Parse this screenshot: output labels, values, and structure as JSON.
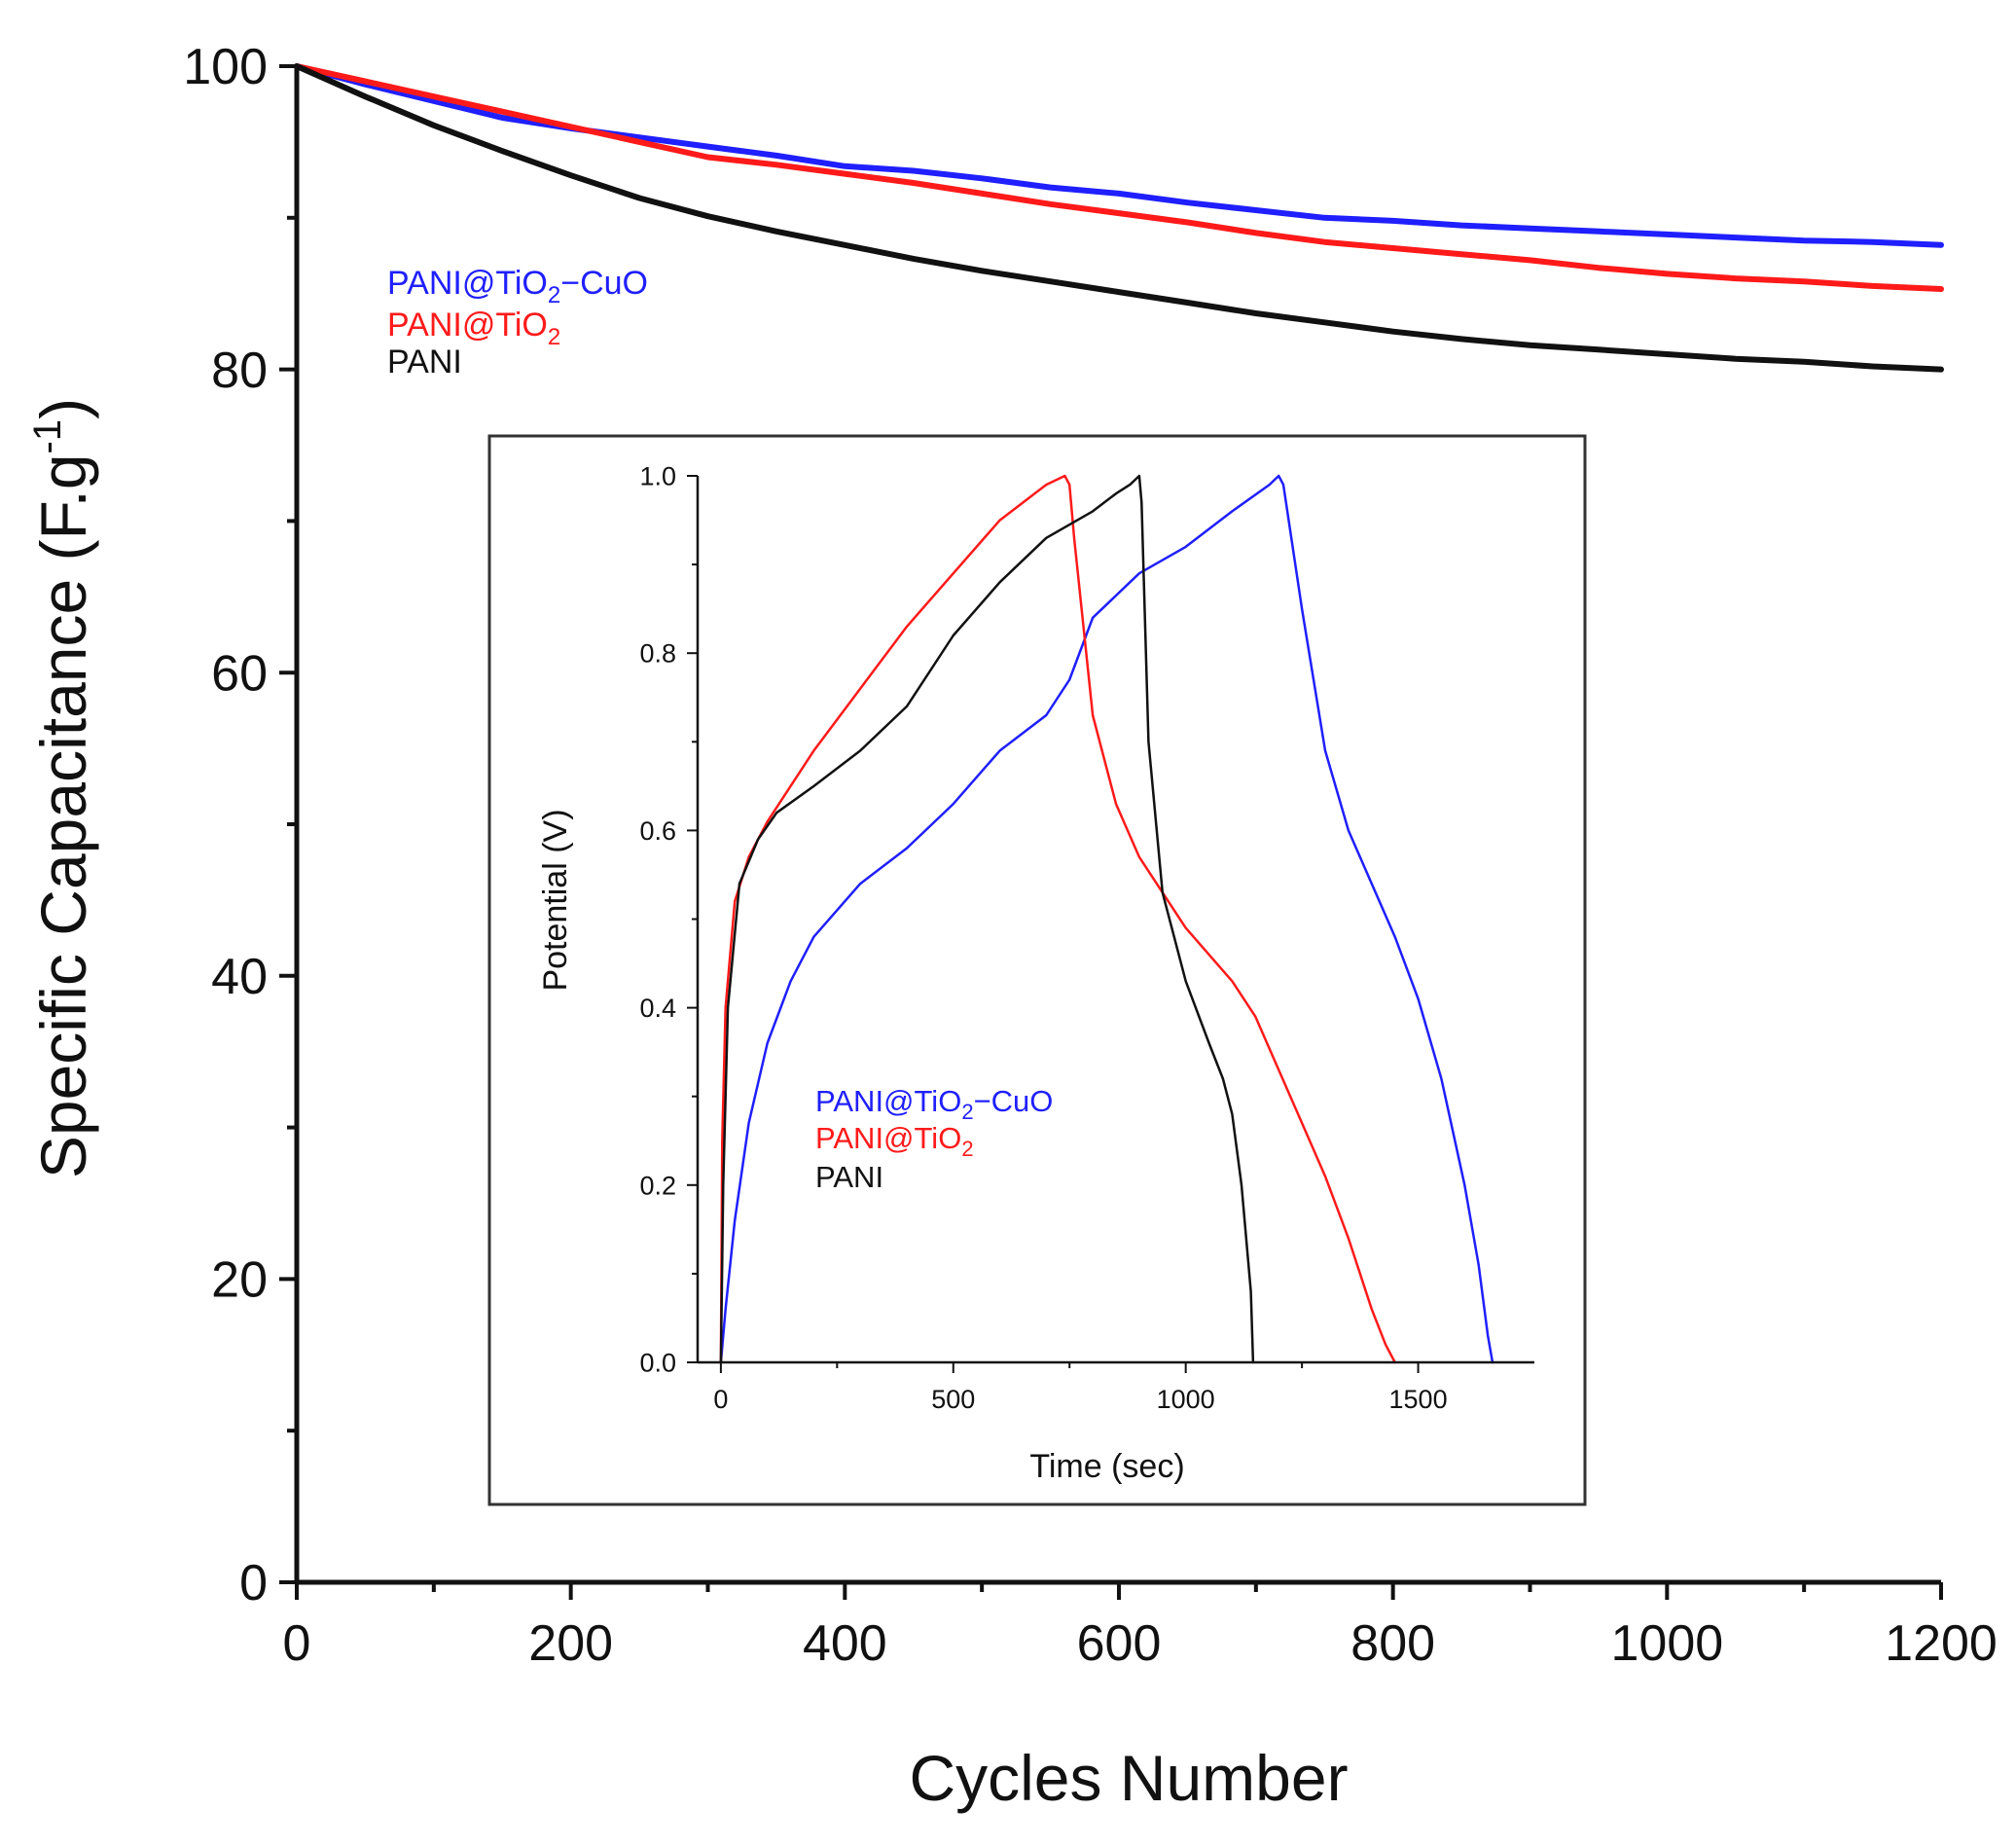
{
  "chart_data": [
    {
      "type": "line",
      "role": "main",
      "xlabel": "Cycles Number",
      "ylabel_main": "Specific Capacitance (F.g",
      "ylabel_sup": "-1",
      "ylabel_close": ")",
      "xlim": [
        0,
        1200
      ],
      "ylim": [
        0,
        100
      ],
      "xticks": [
        0,
        200,
        400,
        600,
        800,
        1000,
        1200
      ],
      "xtick_labels": [
        "0",
        "200",
        "400",
        "600",
        "800",
        "1000",
        "1200"
      ],
      "yticks": [
        0,
        20,
        40,
        60,
        80,
        100
      ],
      "ytick_labels": [
        "0",
        "20",
        "40",
        "60",
        "80",
        "100"
      ],
      "legend_position": "upper-left",
      "series": [
        {
          "name": "PANI@TiO2-CuO",
          "label_main": "PANI@TiO",
          "label_sub": "2",
          "label_tail": "−CuO",
          "color": "#1f1fff",
          "x": [
            0,
            50,
            100,
            150,
            200,
            250,
            300,
            350,
            400,
            450,
            500,
            550,
            600,
            650,
            700,
            750,
            800,
            850,
            900,
            950,
            1000,
            1050,
            1100,
            1150,
            1200
          ],
          "y": [
            100,
            98.8,
            97.7,
            96.6,
            95.9,
            95.3,
            94.7,
            94.1,
            93.4,
            93.1,
            92.6,
            92.0,
            91.6,
            91.0,
            90.5,
            90.0,
            89.8,
            89.5,
            89.3,
            89.1,
            88.9,
            88.7,
            88.5,
            88.4,
            88.2
          ]
        },
        {
          "name": "PANI@TiO2",
          "label_main": "PANI@TiO",
          "label_sub": "2",
          "label_tail": "",
          "color": "#ff1a1a",
          "x": [
            0,
            50,
            100,
            150,
            200,
            250,
            300,
            350,
            400,
            450,
            500,
            550,
            600,
            650,
            700,
            750,
            800,
            850,
            900,
            950,
            1000,
            1050,
            1100,
            1150,
            1200
          ],
          "y": [
            100,
            99.0,
            98.0,
            97.0,
            96.0,
            95.0,
            94.0,
            93.5,
            92.9,
            92.3,
            91.6,
            90.9,
            90.3,
            89.7,
            89.0,
            88.4,
            88.0,
            87.6,
            87.2,
            86.7,
            86.3,
            86.0,
            85.8,
            85.5,
            85.3
          ]
        },
        {
          "name": "PANI",
          "label_main": "PANI",
          "label_sub": "",
          "label_tail": "",
          "color": "#111111",
          "x": [
            0,
            50,
            100,
            150,
            200,
            250,
            300,
            350,
            400,
            450,
            500,
            550,
            600,
            650,
            700,
            750,
            800,
            850,
            900,
            950,
            1000,
            1050,
            1100,
            1150,
            1200
          ],
          "y": [
            100,
            98.0,
            96.1,
            94.4,
            92.8,
            91.3,
            90.1,
            89.1,
            88.2,
            87.3,
            86.5,
            85.8,
            85.1,
            84.4,
            83.7,
            83.1,
            82.5,
            82.0,
            81.6,
            81.3,
            81.0,
            80.7,
            80.5,
            80.2,
            80.0
          ]
        }
      ]
    },
    {
      "type": "line",
      "role": "inset",
      "xlabel": "Time (sec)",
      "ylabel": "Potential (V)",
      "xlim": [
        -50,
        1750
      ],
      "ylim": [
        0,
        1.0
      ],
      "xticks": [
        0,
        500,
        1000,
        1500
      ],
      "xtick_labels": [
        "0",
        "500",
        "1000",
        "1500"
      ],
      "yticks": [
        0,
        0.2,
        0.4,
        0.6,
        0.8,
        1.0
      ],
      "ytick_labels": [
        "0.0",
        "0.2",
        "0.4",
        "0.6",
        "0.8",
        "1.0"
      ],
      "legend_position": "lower-left",
      "series": [
        {
          "name": "PANI@TiO2-CuO",
          "label_main": "PANI@TiO",
          "label_sub": "2",
          "label_tail": "−CuO",
          "color": "#1f1fff",
          "x": [
            0,
            10,
            30,
            60,
            100,
            150,
            200,
            300,
            400,
            500,
            600,
            700,
            750,
            800,
            900,
            1000,
            1100,
            1180,
            1200,
            1210,
            1250,
            1300,
            1350,
            1400,
            1450,
            1500,
            1550,
            1600,
            1630,
            1650,
            1660
          ],
          "y": [
            0,
            0.06,
            0.16,
            0.27,
            0.36,
            0.43,
            0.48,
            0.54,
            0.58,
            0.63,
            0.69,
            0.73,
            0.77,
            0.84,
            0.89,
            0.92,
            0.96,
            0.99,
            1.0,
            0.99,
            0.85,
            0.69,
            0.6,
            0.54,
            0.48,
            0.41,
            0.32,
            0.2,
            0.11,
            0.03,
            0
          ]
        },
        {
          "name": "PANI@TiO2",
          "label_main": "PANI@TiO",
          "label_sub": "2",
          "label_tail": "",
          "color": "#ff1a1a",
          "x": [
            0,
            3,
            10,
            30,
            60,
            100,
            200,
            300,
            400,
            500,
            600,
            700,
            740,
            750,
            760,
            800,
            850,
            900,
            1000,
            1100,
            1150,
            1200,
            1250,
            1300,
            1350,
            1400,
            1430,
            1450
          ],
          "y": [
            0,
            0.25,
            0.4,
            0.52,
            0.57,
            0.61,
            0.69,
            0.76,
            0.83,
            0.89,
            0.95,
            0.99,
            1.0,
            0.99,
            0.93,
            0.73,
            0.63,
            0.57,
            0.49,
            0.43,
            0.39,
            0.33,
            0.27,
            0.21,
            0.14,
            0.06,
            0.02,
            0
          ]
        },
        {
          "name": "PANI",
          "label_main": "PANI",
          "label_sub": "",
          "label_tail": "",
          "color": "#111111",
          "x": [
            0,
            5,
            15,
            40,
            80,
            120,
            200,
            300,
            400,
            500,
            600,
            700,
            800,
            850,
            880,
            900,
            905,
            920,
            950,
            1000,
            1050,
            1080,
            1100,
            1120,
            1140,
            1145
          ],
          "y": [
            0,
            0.2,
            0.4,
            0.54,
            0.59,
            0.62,
            0.65,
            0.69,
            0.74,
            0.82,
            0.88,
            0.93,
            0.96,
            0.98,
            0.99,
            1.0,
            0.97,
            0.7,
            0.53,
            0.43,
            0.36,
            0.32,
            0.28,
            0.2,
            0.08,
            0
          ]
        }
      ]
    }
  ]
}
